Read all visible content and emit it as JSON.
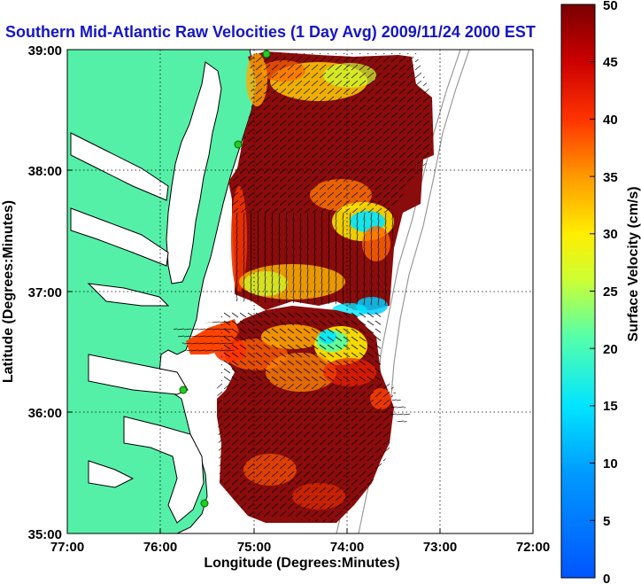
{
  "title": "Southern Mid-Atlantic Raw Velocities (1 Day Avg) 2009/11/24 2000 EST",
  "map": {
    "xlabel": "Longitude (Degrees:Minutes)",
    "ylabel": "Latitude (Degrees:Minutes)",
    "lon_range": [
      -77,
      -72
    ],
    "lat_range": [
      35,
      39
    ],
    "x_ticks": [
      "77:00",
      "76:00",
      "75:00",
      "74:00",
      "73:00",
      "72:00"
    ],
    "y_ticks": [
      "39:00",
      "38:00",
      "37:00",
      "36:00",
      "35:00"
    ],
    "grid": "dotted",
    "colors": {
      "land": "#55f0a8",
      "coast": "#000000",
      "bathymetry": "#9a9a9a",
      "vectors": "#000000",
      "sites": "#22cc22"
    }
  },
  "colorbar": {
    "label": "Surface Velocity (cm/s)",
    "range": [
      0,
      50
    ],
    "ticks": [
      "0",
      "5",
      "10",
      "15",
      "20",
      "25",
      "30",
      "35",
      "40",
      "45",
      "50"
    ],
    "colormap": "jet"
  },
  "velocity_field": {
    "units": "cm/s",
    "regions": [
      {
        "area": "northern field off Delaware/Maryland",
        "speed": 48
      },
      {
        "area": "central field near 37:30N 74:00W",
        "speed": 15
      },
      {
        "area": "near 37:00N 74:10W",
        "speed": 12
      },
      {
        "area": "southern field off North Carolina",
        "speed": 47
      }
    ]
  }
}
